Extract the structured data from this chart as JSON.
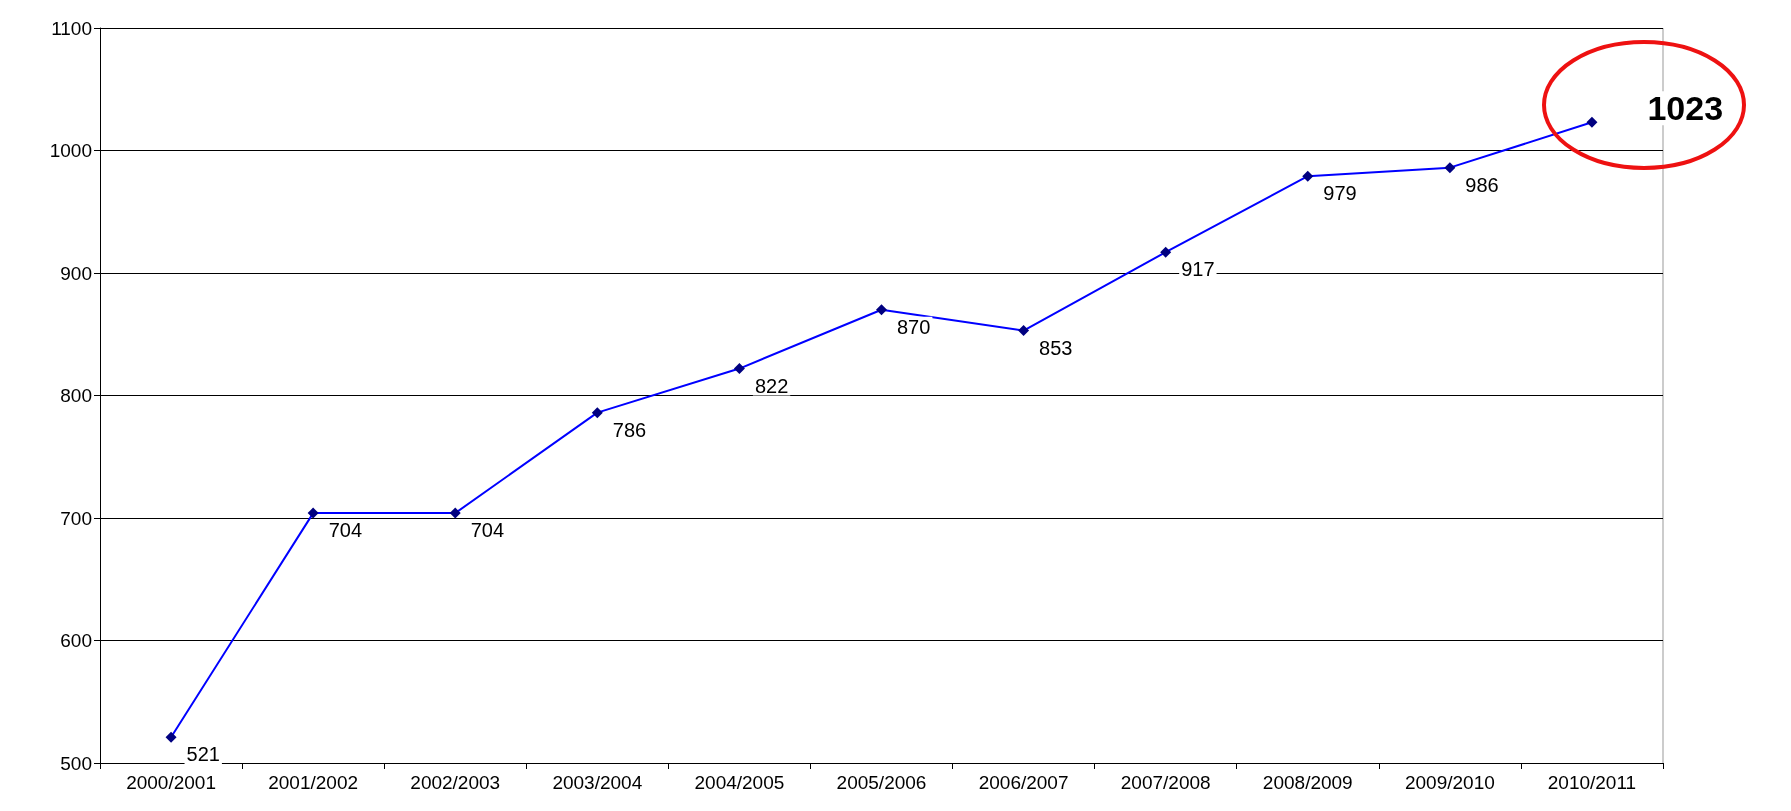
{
  "chart_data": {
    "type": "line",
    "categories": [
      "2000/2001",
      "2001/2002",
      "2002/2003",
      "2003/2004",
      "2004/2005",
      "2005/2006",
      "2006/2007",
      "2007/2008",
      "2008/2009",
      "2009/2010",
      "2010/2011"
    ],
    "series": [
      {
        "color": "#0000ff",
        "values": [
          521,
          704,
          704,
          786,
          822,
          870,
          853,
          917,
          979,
          986,
          1023
        ]
      }
    ],
    "marker": "diamond",
    "data_labels": true,
    "grid": "y",
    "ylim": [
      500,
      1100
    ],
    "yticks": [
      500,
      600,
      700,
      800,
      900,
      1000,
      1100
    ]
  }
}
